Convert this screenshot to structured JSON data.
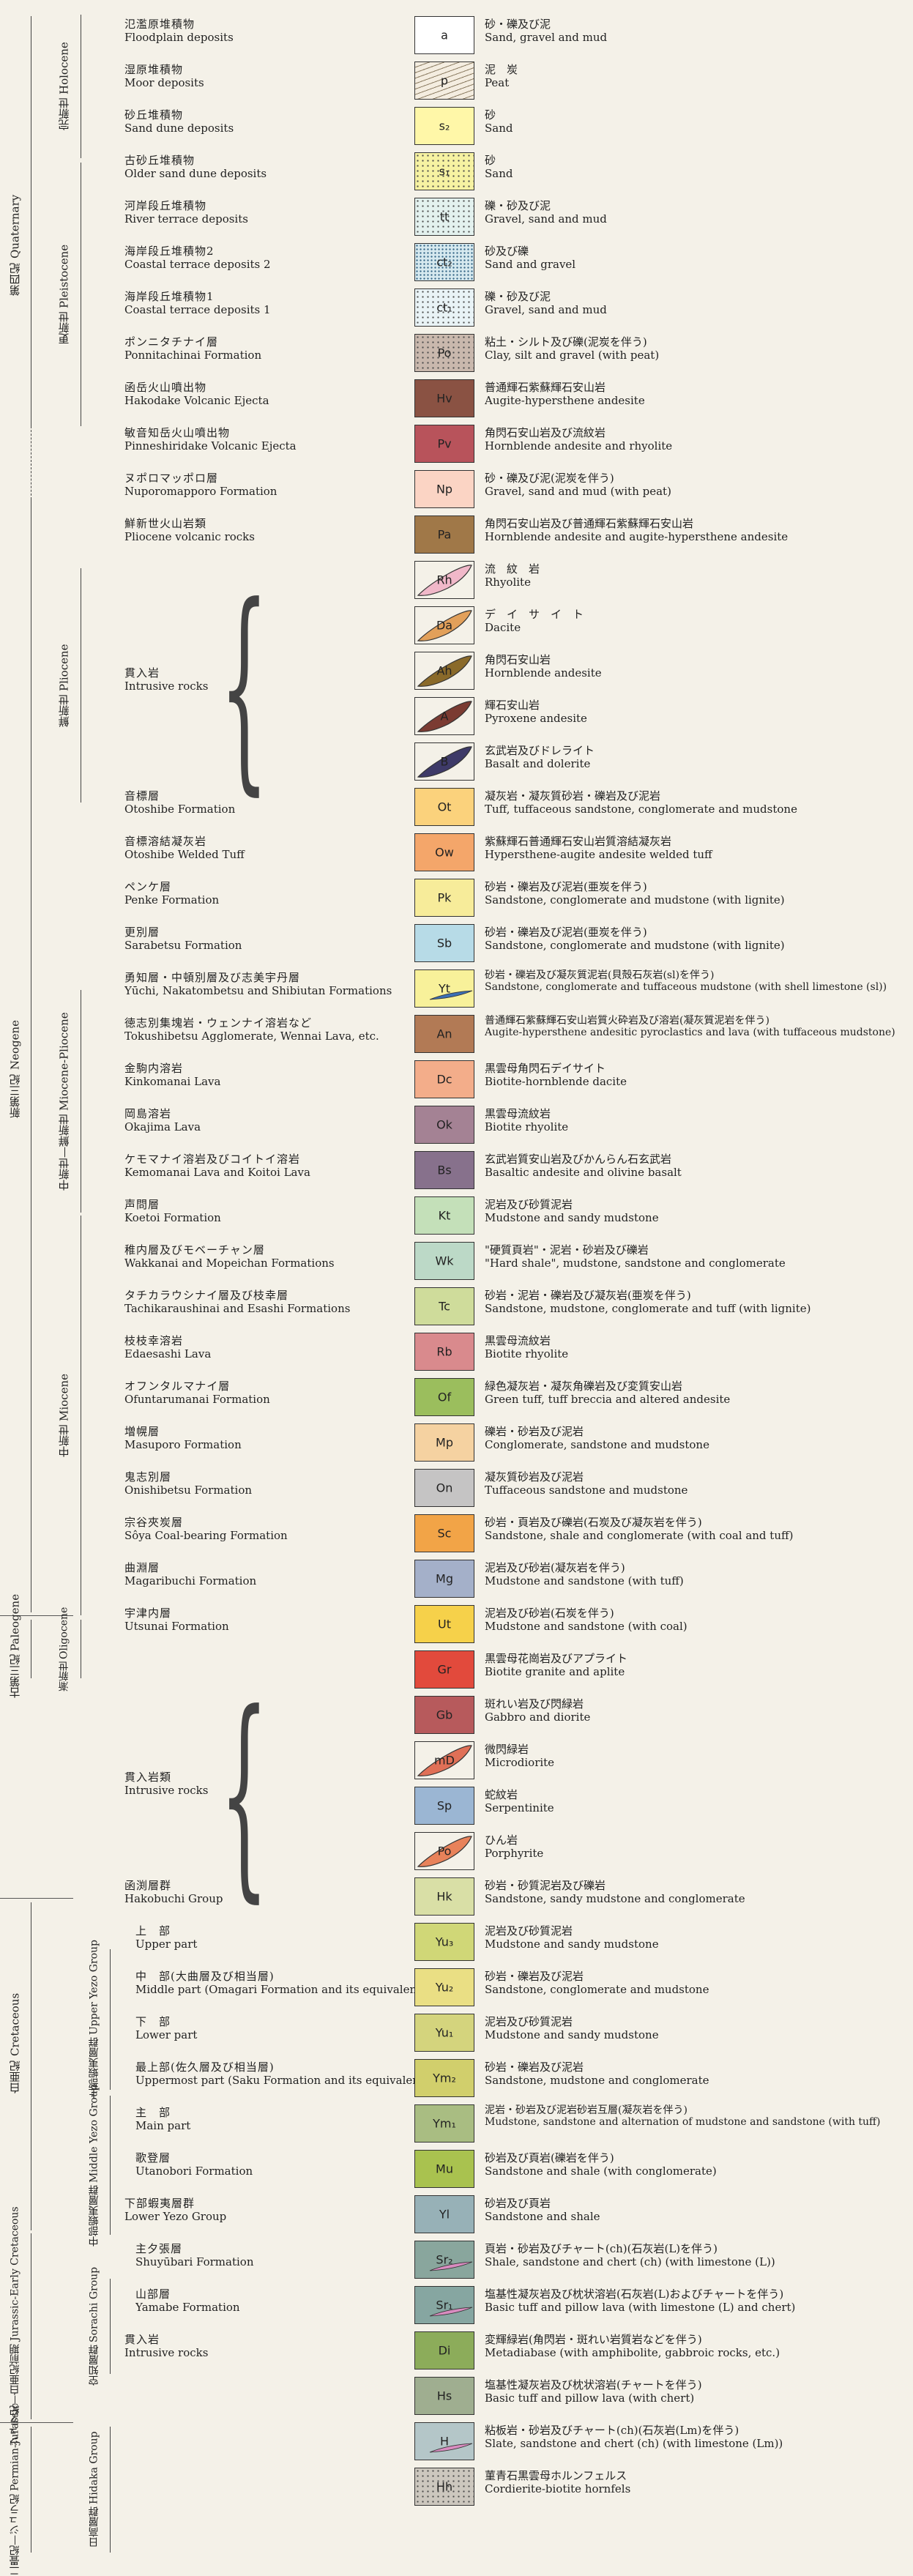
{
  "legend": {
    "rows": [
      {
        "ja": "氾濫原堆積物",
        "en": "Floodplain deposits",
        "code": "a",
        "color": "#ffffff",
        "pattern": "none",
        "d_ja": "砂・礫及び泥",
        "d_en": "Sand, gravel and mud"
      },
      {
        "ja": "湿原堆積物",
        "en": "Moor deposits",
        "code": "p",
        "color": "#f4ede0",
        "pattern": "peat",
        "d_ja": "泥　炭",
        "d_en": "Peat"
      },
      {
        "ja": "砂丘堆積物",
        "en": "Sand dune deposits",
        "code": "s₂",
        "color": "#fff7a8",
        "pattern": "none",
        "d_ja": "砂",
        "d_en": "Sand"
      },
      {
        "ja": "古砂丘堆積物",
        "en": "Older sand dune deposits",
        "code": "s₁",
        "color": "#f6f2a2",
        "pattern": "dots",
        "d_ja": "砂",
        "d_en": "Sand"
      },
      {
        "ja": "河岸段丘堆積物",
        "en": "River terrace deposits",
        "code": "tt",
        "color": "#e3f1ee",
        "pattern": "dots",
        "d_ja": "礫・砂及び泥",
        "d_en": "Gravel, sand and mud"
      },
      {
        "ja": "海岸段丘堆積物2",
        "en": "Coastal terrace deposits 2",
        "code": "ct₂",
        "color": "#d6e9ef",
        "pattern": "grid",
        "d_ja": "砂及び礫",
        "d_en": "Sand and gravel"
      },
      {
        "ja": "海岸段丘堆積物1",
        "en": "Coastal terrace deposits 1",
        "code": "ct₁",
        "color": "#e9f3f6",
        "pattern": "dots",
        "d_ja": "礫・砂及び泥",
        "d_en": "Gravel, sand and mud"
      },
      {
        "ja": "ポンニタチナイ層",
        "en": "Ponnitachinai Formation",
        "code": "Po",
        "color": "#c9b8ad",
        "pattern": "dots",
        "d_ja": "粘土・シルト及び礫(泥炭を伴う)",
        "d_en": "Clay, silt and gravel (with peat)"
      },
      {
        "ja": "函岳火山噴出物",
        "en": "Hakodake Volcanic Ejecta",
        "code": "Hv",
        "color": "#8a5243",
        "pattern": "none",
        "d_ja": "普通輝石紫蘇輝石安山岩",
        "d_en": "Augite-hypersthene andesite"
      },
      {
        "ja": "敏音知岳火山噴出物",
        "en": "Pinneshiridake Volcanic Ejecta",
        "code": "Pv",
        "color": "#b8535b",
        "pattern": "none",
        "d_ja": "角閃石安山岩及び流紋岩",
        "d_en": "Hornblende andesite and rhyolite"
      },
      {
        "ja": "ヌポロマッポロ層",
        "en": "Nuporomapporo Formation",
        "code": "Np",
        "color": "#fbd4c4",
        "pattern": "none",
        "d_ja": "砂・礫及び泥(泥炭を伴う)",
        "d_en": "Gravel, sand and mud (with peat)"
      },
      {
        "ja": "鮮新世火山岩類",
        "en": "Pliocene volcanic rocks",
        "code": "Pa",
        "color": "#a07848",
        "pattern": "none",
        "d_ja": "角閃石安山岩及び普通輝石紫蘇輝石安山岩",
        "d_en": "Hornblende andesite and augite-hypersthene andesite"
      },
      {
        "ja": "",
        "en": "",
        "code": "Rh",
        "color": "#f1b8c9",
        "pattern": "ellipse",
        "d_ja": "流　紋　岩",
        "d_en": "Rhyolite"
      },
      {
        "ja": "",
        "en": "",
        "code": "Da",
        "color": "#e2a05a",
        "pattern": "ellipse",
        "d_ja": "デ　イ　サ　イ　ト",
        "d_en": "Dacite"
      },
      {
        "ja": "",
        "en": "",
        "code": "Ah",
        "color": "#8a6a2a",
        "pattern": "ellipse",
        "d_ja": "角閃石安山岩",
        "d_en": "Hornblende andesite"
      },
      {
        "ja": "",
        "en": "",
        "code": "A",
        "color": "#7b3b32",
        "pattern": "ellipse",
        "d_ja": "輝石安山岩",
        "d_en": "Pyroxene andesite"
      },
      {
        "ja": "",
        "en": "",
        "code": "B",
        "color": "#3e3a68",
        "pattern": "ellipse",
        "d_ja": "玄武岩及びドレライト",
        "d_en": "Basalt and dolerite"
      },
      {
        "ja": "音標層",
        "en": "Otoshibe Formation",
        "code": "Ot",
        "color": "#fbd27c",
        "pattern": "none",
        "d_ja": "凝灰岩・凝灰質砂岩・礫岩及び泥岩",
        "d_en": "Tuff, tuffaceous sandstone, conglomerate and mudstone"
      },
      {
        "ja": "音標溶結凝灰岩",
        "en": "Otoshibe Welded Tuff",
        "code": "Ow",
        "color": "#f4a66a",
        "pattern": "none",
        "d_ja": "紫蘇輝石普通輝石安山岩質溶結凝灰岩",
        "d_en": "Hypersthene-augite andesite welded tuff"
      },
      {
        "ja": "ペンケ層",
        "en": "Penke Formation",
        "code": "Pk",
        "color": "#f7ec9a",
        "pattern": "none",
        "d_ja": "砂岩・礫岩及び泥岩(亜炭を伴う)",
        "d_en": "Sandstone, conglomerate and mudstone (with lignite)"
      },
      {
        "ja": "更別層",
        "en": "Sarabetsu Formation",
        "code": "Sb",
        "color": "#b7dbe7",
        "pattern": "none",
        "d_ja": "砂岩・礫岩及び泥岩(亜炭を伴う)",
        "d_en": "Sandstone, conglomerate and mudstone (with lignite)"
      },
      {
        "ja": "勇知層・中頓別層及び志美宇丹層",
        "en": "Yūchi, Nakatombetsu and Shibiutan Formations",
        "code": "Yt",
        "color": "#f8f19a",
        "pattern": "sl",
        "d_ja": "砂岩・礫岩及び凝灰質泥岩(貝殻石灰岩(sl)を伴う)",
        "d_en": "Sandstone, conglomerate and tuffaceous mudstone (with shell limestone (sl))"
      },
      {
        "ja": "徳志別集塊岩・ウェンナイ溶岩など",
        "en": "Tokushibetsu Agglomerate, Wennai Lava, etc.",
        "code": "An",
        "color": "#b27a55",
        "pattern": "none",
        "d_ja": "普通輝石紫蘇輝石安山岩質火砕岩及び溶岩(凝灰質泥岩を伴う)",
        "d_en": "Augite-hypersthene andesitic pyroclastics and lava (with tuffaceous mudstone)"
      },
      {
        "ja": "金駒内溶岩",
        "en": "Kinkomanai Lava",
        "code": "Dc",
        "color": "#f3ad8a",
        "pattern": "none",
        "d_ja": "黒雲母角閃石デイサイト",
        "d_en": "Biotite-hornblende dacite"
      },
      {
        "ja": "岡島溶岩",
        "en": "Okajima Lava",
        "code": "Ok",
        "color": "#a48294",
        "pattern": "none",
        "d_ja": "黒雲母流紋岩",
        "d_en": "Biotite rhyolite"
      },
      {
        "ja": "ケモマナイ溶岩及びコイトイ溶岩",
        "en": "Kemomanai Lava and Koitoi Lava",
        "code": "Bs",
        "color": "#87718c",
        "pattern": "none",
        "d_ja": "玄武岩質安山岩及びかんらん石玄武岩",
        "d_en": "Basaltic andesite and olivine basalt"
      },
      {
        "ja": "声問層",
        "en": "Koetoi Formation",
        "code": "Kt",
        "color": "#c4e0b9",
        "pattern": "none",
        "d_ja": "泥岩及び砂質泥岩",
        "d_en": "Mudstone and sandy mudstone"
      },
      {
        "ja": "稚内層及びモベーチャン層",
        "en": "Wakkanai and Mopeichan Formations",
        "code": "Wk",
        "color": "#bcd9c7",
        "pattern": "none",
        "d_ja": "\"硬質頁岩\"・泥岩・砂岩及び礫岩",
        "d_en": "\"Hard shale\", mudstone, sandstone and conglomerate"
      },
      {
        "ja": "タチカラウシナイ層及び枝幸層",
        "en": "Tachikaraushinai and Esashi Formations",
        "code": "Tc",
        "color": "#cfdc9b",
        "pattern": "none",
        "d_ja": "砂岩・泥岩・礫岩及び凝灰岩(亜炭を伴う)",
        "d_en": "Sandstone, mudstone, conglomerate and tuff (with lignite)"
      },
      {
        "ja": "枝枝幸溶岩",
        "en": "Edaesashi Lava",
        "code": "Rb",
        "color": "#d98a8d",
        "pattern": "none",
        "d_ja": "黒雲母流紋岩",
        "d_en": "Biotite rhyolite"
      },
      {
        "ja": "オフンタルマナイ層",
        "en": "Ofuntarumanai Formation",
        "code": "Of",
        "color": "#9bbe5d",
        "pattern": "none",
        "d_ja": "緑色凝灰岩・凝灰角礫岩及び変質安山岩",
        "d_en": "Green tuff, tuff breccia and altered andesite"
      },
      {
        "ja": "増幌層",
        "en": "Masuporo Formation",
        "code": "Mp",
        "color": "#f5d2a1",
        "pattern": "none",
        "d_ja": "礫岩・砂岩及び泥岩",
        "d_en": "Conglomerate, sandstone and mudstone"
      },
      {
        "ja": "鬼志別層",
        "en": "Onishibetsu Formation",
        "code": "On",
        "color": "#c5c4c4",
        "pattern": "none",
        "d_ja": "凝灰質砂岩及び泥岩",
        "d_en": "Tuffaceous sandstone and mudstone"
      },
      {
        "ja": "宗谷夾炭層",
        "en": "Sôya Coal-bearing Formation",
        "code": "Sc",
        "color": "#f2a447",
        "pattern": "none",
        "d_ja": "砂岩・頁岩及び礫岩(石炭及び凝灰岩を伴う)",
        "d_en": "Sandstone, shale and conglomerate (with coal and tuff)"
      },
      {
        "ja": "曲淵層",
        "en": "Magaribuchi Formation",
        "code": "Mg",
        "color": "#a4b0c9",
        "pattern": "none",
        "d_ja": "泥岩及び砂岩(凝灰岩を伴う)",
        "d_en": "Mudstone and sandstone (with tuff)"
      },
      {
        "ja": "宇津内層",
        "en": "Utsunai Formation",
        "code": "Ut",
        "color": "#f6d14a",
        "pattern": "none",
        "d_ja": "泥岩及び砂岩(石炭を伴う)",
        "d_en": "Mudstone and sandstone (with coal)"
      },
      {
        "ja": "",
        "en": "",
        "code": "Gr",
        "color": "#e24a3c",
        "pattern": "none",
        "d_ja": "黒雲母花崗岩及びアプライト",
        "d_en": "Biotite granite and aplite"
      },
      {
        "ja": "",
        "en": "",
        "code": "Gb",
        "color": "#b75a5c",
        "pattern": "none",
        "d_ja": "斑れい岩及び閃緑岩",
        "d_en": "Gabbro and diorite"
      },
      {
        "ja": "",
        "en": "",
        "code": "mD",
        "color": "#e07057",
        "pattern": "ellipse",
        "d_ja": "微閃緑岩",
        "d_en": "Microdiorite"
      },
      {
        "ja": "",
        "en": "",
        "code": "Sp",
        "color": "#9bb6d3",
        "pattern": "none",
        "d_ja": "蛇紋岩",
        "d_en": "Serpentinite"
      },
      {
        "ja": "",
        "en": "",
        "code": "Po",
        "color": "#e8825a",
        "pattern": "ellipse",
        "d_ja": "ひん岩",
        "d_en": "Porphyrite"
      },
      {
        "ja": "函渕層群",
        "en": "Hakobuchi Group",
        "code": "Hk",
        "color": "#d9dfa6",
        "pattern": "none",
        "d_ja": "砂岩・砂質泥岩及び礫岩",
        "d_en": "Sandstone, sandy mudstone and conglomerate"
      },
      {
        "ja": "上　部",
        "en": "Upper part",
        "code": "Yu₃",
        "color": "#d0d777",
        "pattern": "none",
        "d_ja": "泥岩及び砂質泥岩",
        "d_en": "Mudstone and sandy mudstone"
      },
      {
        "ja": "中　部(大曲層及び相当層)",
        "en": "Middle part (Omagari Formation and its equivalents)",
        "code": "Yu₂",
        "color": "#eadf84",
        "pattern": "none",
        "d_ja": "砂岩・礫岩及び泥岩",
        "d_en": "Sandstone, conglomerate and mudstone"
      },
      {
        "ja": "下　部",
        "en": "Lower part",
        "code": "Yu₁",
        "color": "#d4d47d",
        "pattern": "none",
        "d_ja": "泥岩及び砂質泥岩",
        "d_en": "Mudstone and sandy mudstone"
      },
      {
        "ja": "最上部(佐久層及び相当層)",
        "en": "Uppermost part (Saku Formation and its equivalents)",
        "code": "Ym₂",
        "color": "#d1cf6c",
        "pattern": "none",
        "d_ja": "砂岩・礫岩及び泥岩",
        "d_en": "Sandstone, mudstone and conglomerate"
      },
      {
        "ja": "主　部",
        "en": "Main part",
        "code": "Ym₁",
        "color": "#a9bd82",
        "pattern": "none",
        "d_ja": "泥岩・砂岩及び泥岩砂岩互層(凝灰岩を伴う)",
        "d_en": "Mudstone, sandstone and alternation of mudstone and sandstone (with tuff)"
      },
      {
        "ja": "歌登層",
        "en": "Utanobori Formation",
        "code": "Mu",
        "color": "#a9c24f",
        "pattern": "none",
        "d_ja": "砂岩及び頁岩(礫岩を伴う)",
        "d_en": "Sandstone and shale (with conglomerate)"
      },
      {
        "ja": "下部蝦夷層群",
        "en": "Lower Yezo Group",
        "code": "Yl",
        "color": "#97b1b7",
        "pattern": "none",
        "d_ja": "砂岩及び頁岩",
        "d_en": "Sandstone and shale"
      },
      {
        "ja": "主夕張層",
        "en": "Shuyūbari Formation",
        "code": "Sr₂",
        "color": "#89a69d",
        "pattern": "lens",
        "d_ja": "頁岩・砂岩及びチャート(ch)(石灰岩(L)を伴う)",
        "d_en": "Shale, sandstone and chert (ch) (with limestone (L))"
      },
      {
        "ja": "山部層",
        "en": "Yamabe Formation",
        "code": "Sr₁",
        "color": "#86a6a1",
        "pattern": "lens",
        "d_ja": "塩基性凝灰岩及び枕状溶岩(石灰岩(L)およびチャートを伴う)",
        "d_en": "Basic tuff and pillow lava (with limestone (L) and chert)"
      },
      {
        "ja": "貫入岩",
        "en": "Intrusive rocks",
        "code": "Di",
        "color": "#8cac5a",
        "pattern": "none",
        "d_ja": "変輝緑岩(角閃岩・斑れい岩質岩などを伴う)",
        "d_en": "Metadiabase (with amphibolite, gabbroic rocks, etc.)"
      },
      {
        "ja": "",
        "en": "",
        "code": "Hs",
        "color": "#9fae90",
        "pattern": "none",
        "d_ja": "塩基性凝灰岩及び枕状溶岩(チャートを伴う)",
        "d_en": "Basic tuff and pillow lava (with chert)"
      },
      {
        "ja": "",
        "en": "",
        "code": "H",
        "color": "#b4c6c8",
        "pattern": "lens",
        "d_ja": "粘板岩・砂岩及びチャート(ch)(石灰岩(Lm)を伴う)",
        "d_en": "Slate, sandstone and chert (ch) (with limestone (Lm))"
      },
      {
        "ja": "",
        "en": "",
        "code": "Hh",
        "color": "#ccc7be",
        "pattern": "dots",
        "d_ja": "菫青石黒雲母ホルンフェルス",
        "d_en": "Cordierite-biotite hornfels"
      }
    ],
    "intrusive": [
      {
        "ja": "貫入岩",
        "en": "Intrusive rocks"
      },
      {
        "ja": "貫入岩類",
        "en": "Intrusive rocks"
      }
    ],
    "col1": [
      {
        "ja": "第四紀",
        "en": "Quaternary"
      },
      {
        "ja": "新第三紀",
        "en": "Neogene"
      },
      {
        "ja": "古第三紀",
        "en": "Paleogene"
      },
      {
        "ja": "白亜紀",
        "en": "Cretaceous"
      },
      {
        "ja": "ジュラ紀—白亜紀前期",
        "en": "Jurassic-Early Cretaceous"
      },
      {
        "ja": "二畳紀—ジュラ紀",
        "en": "Permian-Jurassic"
      }
    ],
    "col2": [
      {
        "ja": "完新世",
        "en": "Holocene"
      },
      {
        "ja": "更新世",
        "en": "Pleistocene"
      },
      {
        "ja": "鮮新世",
        "en": "Pliocene"
      },
      {
        "ja": "中新世—鮮新世",
        "en": "Miocene-Pliocene"
      },
      {
        "ja": "中新世",
        "en": "Miocene"
      },
      {
        "ja": "漸新世",
        "en": "Oligocene"
      }
    ],
    "col3": [
      {
        "ja": "上部蝦夷層群",
        "en": "Upper Yezo Group"
      },
      {
        "ja": "中部蝦夷層群",
        "en": "Middle Yezo Group"
      },
      {
        "ja": "空知層群",
        "en": "Sorachi Group"
      },
      {
        "ja": "日高層群",
        "en": "Hidaka Group"
      }
    ]
  }
}
